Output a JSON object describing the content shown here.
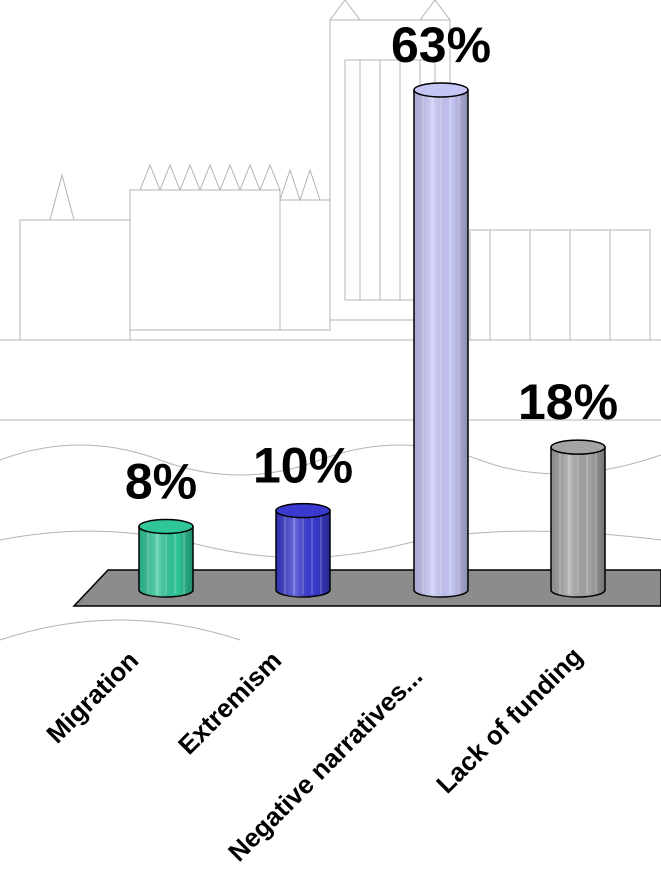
{
  "chart_data": {
    "type": "bar",
    "title": "",
    "xlabel": "",
    "ylabel": "",
    "categories": [
      "Migration",
      "Extremism",
      "Negative narratives...",
      "Lack of funding"
    ],
    "values": [
      8,
      10,
      63,
      18
    ],
    "value_labels": [
      "8%",
      "10%",
      "63%",
      "18%"
    ],
    "unit": "%",
    "ylim": [
      0,
      63
    ],
    "grid": false,
    "legend": "none",
    "colors": [
      "#2fc79a",
      "#3a3ad0",
      "#c6c6f6",
      "#a4a4a4"
    ],
    "floor_color": "#8c8c8c",
    "background": "faint sketch of Parliament buildings"
  }
}
